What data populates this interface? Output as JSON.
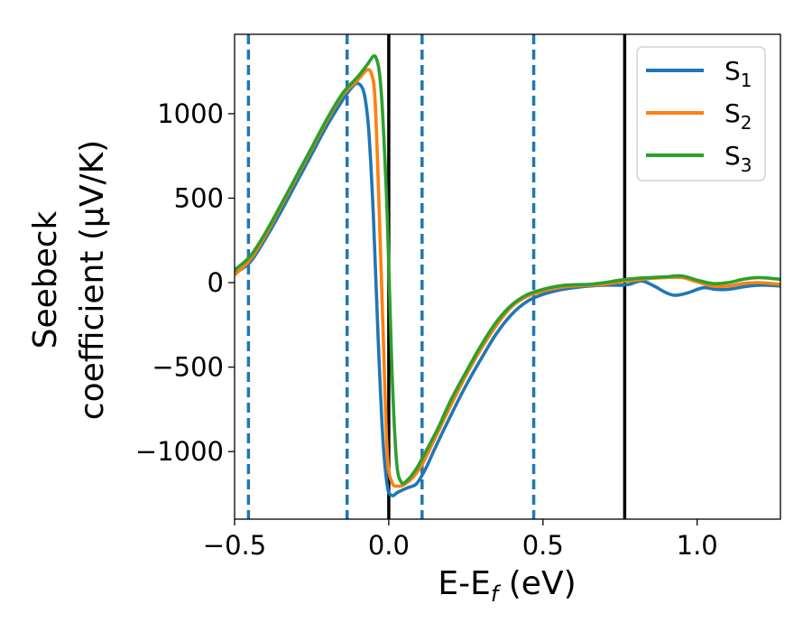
{
  "chart_data": {
    "type": "line",
    "xlabel_main": "E-E",
    "xlabel_sub": "f",
    "xlabel_unit": " (eV)",
    "ylabel_line1": "Seebeck",
    "ylabel_line2": "coefficient  (μV/K)",
    "xlim": [
      -0.5,
      1.27
    ],
    "ylim": [
      -1400,
      1470
    ],
    "xticks": [
      {
        "value": -0.5,
        "label": "−0.5"
      },
      {
        "value": 0.0,
        "label": "0.0"
      },
      {
        "value": 0.5,
        "label": "0.5"
      },
      {
        "value": 1.0,
        "label": "1.0"
      }
    ],
    "yticks": [
      {
        "value": -1000,
        "label": "−1000"
      },
      {
        "value": -500,
        "label": "−500"
      },
      {
        "value": 0,
        "label": "0"
      },
      {
        "value": 500,
        "label": "500"
      },
      {
        "value": 1000,
        "label": "1000"
      }
    ],
    "vlines_dashed": [
      -0.455,
      -0.135,
      0.108,
      0.47
    ],
    "vlines_solid": [
      0.0,
      0.765
    ],
    "dashed_color": "#1f77b4",
    "solid_color": "#000000",
    "legend": {
      "placement": "upper-right",
      "entries": [
        {
          "base": "S",
          "sub": "1",
          "color": "#1f77b4"
        },
        {
          "base": "S",
          "sub": "2",
          "color": "#ff7f0e"
        },
        {
          "base": "S",
          "sub": "3",
          "color": "#2ca02c"
        }
      ]
    },
    "series": [
      {
        "color": "#1f77b4",
        "points": [
          [
            -0.5,
            55
          ],
          [
            -0.45,
            120
          ],
          [
            -0.4,
            260
          ],
          [
            -0.35,
            420
          ],
          [
            -0.3,
            590
          ],
          [
            -0.25,
            760
          ],
          [
            -0.2,
            930
          ],
          [
            -0.15,
            1080
          ],
          [
            -0.12,
            1155
          ],
          [
            -0.1,
            1180
          ],
          [
            -0.08,
            1120
          ],
          [
            -0.065,
            900
          ],
          [
            -0.05,
            400
          ],
          [
            -0.035,
            -300
          ],
          [
            -0.02,
            -900
          ],
          [
            -0.005,
            -1200
          ],
          [
            0.01,
            -1260
          ],
          [
            0.03,
            -1240
          ],
          [
            0.06,
            -1215
          ],
          [
            0.09,
            -1190
          ],
          [
            0.12,
            -1100
          ],
          [
            0.15,
            -980
          ],
          [
            0.2,
            -790
          ],
          [
            0.25,
            -610
          ],
          [
            0.3,
            -450
          ],
          [
            0.35,
            -300
          ],
          [
            0.4,
            -185
          ],
          [
            0.45,
            -110
          ],
          [
            0.5,
            -70
          ],
          [
            0.55,
            -45
          ],
          [
            0.6,
            -30
          ],
          [
            0.65,
            -20
          ],
          [
            0.7,
            -15
          ],
          [
            0.75,
            -15
          ],
          [
            0.78,
            -10
          ],
          [
            0.82,
            10
          ],
          [
            0.86,
            -20
          ],
          [
            0.9,
            -60
          ],
          [
            0.93,
            -75
          ],
          [
            0.97,
            -60
          ],
          [
            1.02,
            -30
          ],
          [
            1.06,
            -40
          ],
          [
            1.1,
            -40
          ],
          [
            1.15,
            -25
          ],
          [
            1.2,
            -15
          ],
          [
            1.27,
            -20
          ]
        ]
      },
      {
        "color": "#ff7f0e",
        "points": [
          [
            -0.5,
            45
          ],
          [
            -0.45,
            135
          ],
          [
            -0.4,
            280
          ],
          [
            -0.35,
            450
          ],
          [
            -0.3,
            620
          ],
          [
            -0.25,
            790
          ],
          [
            -0.2,
            960
          ],
          [
            -0.15,
            1110
          ],
          [
            -0.1,
            1200
          ],
          [
            -0.07,
            1260
          ],
          [
            -0.055,
            1230
          ],
          [
            -0.045,
            1100
          ],
          [
            -0.035,
            650
          ],
          [
            -0.02,
            -200
          ],
          [
            -0.005,
            -1000
          ],
          [
            0.01,
            -1180
          ],
          [
            0.03,
            -1205
          ],
          [
            0.05,
            -1195
          ],
          [
            0.08,
            -1150
          ],
          [
            0.11,
            -1070
          ],
          [
            0.15,
            -920
          ],
          [
            0.2,
            -730
          ],
          [
            0.25,
            -550
          ],
          [
            0.3,
            -390
          ],
          [
            0.35,
            -250
          ],
          [
            0.4,
            -140
          ],
          [
            0.45,
            -80
          ],
          [
            0.5,
            -50
          ],
          [
            0.55,
            -30
          ],
          [
            0.6,
            -20
          ],
          [
            0.65,
            -15
          ],
          [
            0.7,
            -10
          ],
          [
            0.75,
            5
          ],
          [
            0.8,
            15
          ],
          [
            0.85,
            25
          ],
          [
            0.9,
            30
          ],
          [
            0.95,
            30
          ],
          [
            1.0,
            5
          ],
          [
            1.05,
            -20
          ],
          [
            1.1,
            -20
          ],
          [
            1.15,
            -5
          ],
          [
            1.2,
            0
          ],
          [
            1.27,
            -10
          ]
        ]
      },
      {
        "color": "#2ca02c",
        "points": [
          [
            -0.5,
            75
          ],
          [
            -0.45,
            155
          ],
          [
            -0.4,
            295
          ],
          [
            -0.35,
            460
          ],
          [
            -0.3,
            630
          ],
          [
            -0.25,
            800
          ],
          [
            -0.2,
            970
          ],
          [
            -0.15,
            1120
          ],
          [
            -0.1,
            1220
          ],
          [
            -0.07,
            1290
          ],
          [
            -0.05,
            1340
          ],
          [
            -0.04,
            1325
          ],
          [
            -0.03,
            1240
          ],
          [
            -0.02,
            1000
          ],
          [
            -0.005,
            400
          ],
          [
            0.01,
            -500
          ],
          [
            0.025,
            -1050
          ],
          [
            0.04,
            -1180
          ],
          [
            0.06,
            -1170
          ],
          [
            0.09,
            -1100
          ],
          [
            0.12,
            -1000
          ],
          [
            0.16,
            -860
          ],
          [
            0.2,
            -700
          ],
          [
            0.25,
            -530
          ],
          [
            0.3,
            -370
          ],
          [
            0.35,
            -230
          ],
          [
            0.4,
            -130
          ],
          [
            0.45,
            -70
          ],
          [
            0.5,
            -40
          ],
          [
            0.55,
            -20
          ],
          [
            0.6,
            -12
          ],
          [
            0.65,
            -10
          ],
          [
            0.7,
            0
          ],
          [
            0.75,
            15
          ],
          [
            0.8,
            25
          ],
          [
            0.85,
            30
          ],
          [
            0.9,
            35
          ],
          [
            0.95,
            40
          ],
          [
            1.0,
            15
          ],
          [
            1.05,
            -5
          ],
          [
            1.1,
            0
          ],
          [
            1.15,
            20
          ],
          [
            1.2,
            30
          ],
          [
            1.27,
            20
          ]
        ]
      }
    ]
  }
}
